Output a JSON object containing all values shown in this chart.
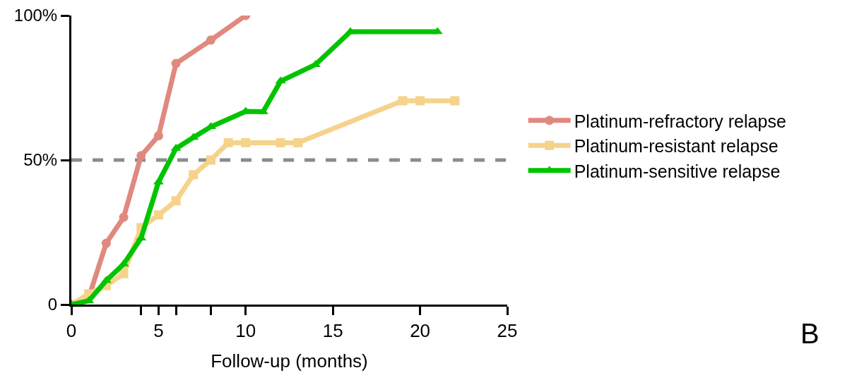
{
  "chart_data": {
    "type": "line",
    "xlabel": "Follow-up (months)",
    "xlim": [
      0,
      25
    ],
    "xticks": [
      0,
      {
        "value": 4,
        "label": null
      },
      5,
      {
        "value": 6,
        "label": null
      },
      {
        "value": 8,
        "label": null
      },
      10,
      15,
      20,
      25
    ],
    "ylim": [
      0,
      100
    ],
    "yticks": [
      {
        "value": 0,
        "label": "0"
      },
      {
        "value": 50,
        "label": "50%"
      },
      {
        "value": 100,
        "label": "100%"
      }
    ],
    "grid": false,
    "legend": "right",
    "series": [
      {
        "name": "Platinum-refractory relapse",
        "color": "#e0897f",
        "marker": "circle",
        "x": [
          0,
          1,
          2,
          3,
          4,
          5,
          6,
          8,
          10
        ],
        "values": [
          0,
          2.5,
          21.2,
          30.2,
          51.5,
          58.4,
          83.4,
          91.5,
          100
        ]
      },
      {
        "name": "Platinum-resistant relapse",
        "color": "#f5d38b",
        "marker": "square",
        "x": [
          0,
          1,
          2,
          3,
          4,
          5,
          6,
          7,
          8,
          9,
          10,
          12,
          13,
          19,
          20,
          22
        ],
        "values": [
          0,
          3.7,
          6.6,
          10.7,
          26.6,
          31,
          35.9,
          44.9,
          50,
          56,
          56,
          56,
          56,
          70.5,
          70.5,
          70.5
        ]
      },
      {
        "name": "Platinum-sensitive relapse",
        "color": "#00c400",
        "marker": "triangle",
        "x": [
          0,
          1,
          2,
          3,
          4,
          5,
          6,
          7,
          8,
          10,
          11,
          12,
          14,
          16,
          21
        ],
        "values": [
          0,
          1.3,
          8.3,
          14,
          23,
          42.4,
          54,
          57.8,
          61.5,
          66.8,
          66.7,
          77.3,
          83,
          94.4,
          94.4
        ]
      }
    ],
    "ref_lines": [
      {
        "axis": "y",
        "value": 50,
        "color": "#8c8c8c",
        "line_style": "dashed"
      }
    ],
    "annotations": [
      "B"
    ]
  }
}
